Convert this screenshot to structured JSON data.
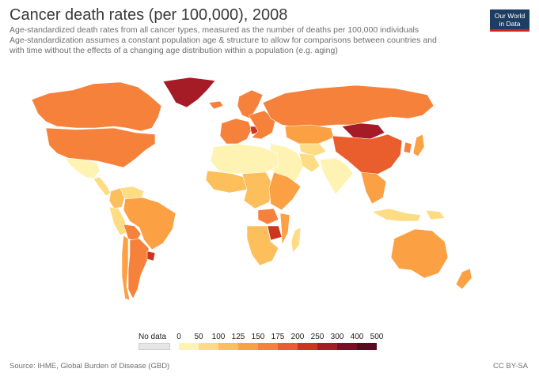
{
  "header": {
    "title": "Cancer death rates (per 100,000), 2008",
    "subtitle_lines": [
      "Age-standardized death rates from all cancer types, measured as the number of deaths per 100,000 individuals",
      "Age-standardization assumes a constant population age & structure to allow for comparisons between countries and",
      "with time without the effects of a changing age distribution within a population (e.g. aging)"
    ],
    "logo_line1": "Our World",
    "logo_line2": "in Data",
    "logo_color": "#1d3d63",
    "logo_accent": "#ce261e"
  },
  "legend": {
    "no_data_label": "No data",
    "no_data_color": "#e6e6e6",
    "ticks": [
      "0",
      "50",
      "100",
      "125",
      "150",
      "175",
      "200",
      "250",
      "300",
      "400",
      "500"
    ],
    "colors": [
      "#fff3b3",
      "#fedc84",
      "#fdbf5c",
      "#fba043",
      "#f6813a",
      "#ea5e2d",
      "#cc3520",
      "#a51c27",
      "#7c0f27",
      "#5a0a1f"
    ]
  },
  "regions": [
    {
      "name": "Greenland",
      "bin": 7
    },
    {
      "name": "Canada",
      "bin": 4
    },
    {
      "name": "United States",
      "bin": 4
    },
    {
      "name": "Mexico",
      "bin": 0
    },
    {
      "name": "Central America",
      "bin": 1
    },
    {
      "name": "Colombia",
      "bin": 2
    },
    {
      "name": "Venezuela",
      "bin": 1
    },
    {
      "name": "Peru",
      "bin": 1
    },
    {
      "name": "Brazil",
      "bin": 3
    },
    {
      "name": "Bolivia",
      "bin": 4
    },
    {
      "name": "Argentina",
      "bin": 4
    },
    {
      "name": "Chile",
      "bin": 3
    },
    {
      "name": "Uruguay",
      "bin": 6
    },
    {
      "name": "Iceland",
      "bin": 4
    },
    {
      "name": "Scandinavia",
      "bin": 4
    },
    {
      "name": "Western Europe",
      "bin": 4
    },
    {
      "name": "Hungary",
      "bin": 6
    },
    {
      "name": "Eastern Europe",
      "bin": 4
    },
    {
      "name": "Russia",
      "bin": 4
    },
    {
      "name": "Kazakhstan",
      "bin": 3
    },
    {
      "name": "Central Asia",
      "bin": 1
    },
    {
      "name": "Middle East",
      "bin": 0
    },
    {
      "name": "Iran",
      "bin": 1
    },
    {
      "name": "India",
      "bin": 0
    },
    {
      "name": "Mongolia",
      "bin": 7
    },
    {
      "name": "China",
      "bin": 5
    },
    {
      "name": "Korea",
      "bin": 4
    },
    {
      "name": "Japan",
      "bin": 3
    },
    {
      "name": "Southeast Asia",
      "bin": 3
    },
    {
      "name": "Indonesia",
      "bin": 1
    },
    {
      "name": "Papua New Guinea",
      "bin": 1
    },
    {
      "name": "North Africa",
      "bin": 0
    },
    {
      "name": "West Africa",
      "bin": 2
    },
    {
      "name": "Central Africa",
      "bin": 2
    },
    {
      "name": "East Africa",
      "bin": 3
    },
    {
      "name": "Zambia",
      "bin": 4
    },
    {
      "name": "Zimbabwe",
      "bin": 6
    },
    {
      "name": "Mozambique",
      "bin": 3
    },
    {
      "name": "Southern Africa",
      "bin": 2
    },
    {
      "name": "Madagascar",
      "bin": 1
    },
    {
      "name": "Australia",
      "bin": 3
    },
    {
      "name": "New Zealand",
      "bin": 3
    }
  ],
  "footer": {
    "source": "Source: IHME, Global Burden of Disease (GBD)",
    "license": "CC BY-SA"
  }
}
